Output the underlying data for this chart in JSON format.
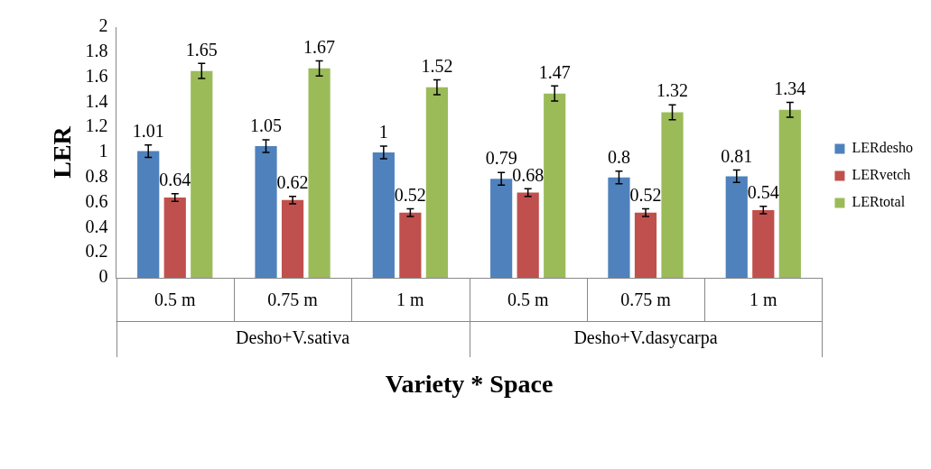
{
  "chart_data": {
    "type": "bar",
    "xlabel": "Variety * Space",
    "ylabel": "LER",
    "categories": [
      "0.5 m",
      "0.75 m",
      "1 m",
      "0.5 m",
      "0.75 m",
      "1 m"
    ],
    "annotations": [
      "Desho+V.sativa",
      "Desho+V.dasycarpa"
    ],
    "series": [
      {
        "name": "LERdesho",
        "color": "#4f81bd",
        "values": [
          1.01,
          1.05,
          1,
          0.79,
          0.8,
          0.81
        ],
        "errors": [
          0.05,
          0.05,
          0.05,
          0.05,
          0.05,
          0.05
        ]
      },
      {
        "name": "LERvetch",
        "color": "#c0504d",
        "values": [
          0.64,
          0.62,
          0.52,
          0.68,
          0.52,
          0.54
        ],
        "errors": [
          0.03,
          0.03,
          0.03,
          0.03,
          0.03,
          0.03
        ]
      },
      {
        "name": "LERtotal",
        "color": "#9bbb59",
        "values": [
          1.65,
          1.67,
          1.52,
          1.47,
          1.32,
          1.34
        ],
        "errors": [
          0.06,
          0.06,
          0.06,
          0.06,
          0.06,
          0.06
        ]
      }
    ],
    "ylim": [
      0,
      2
    ],
    "yticks": [
      0,
      0.2,
      0.4,
      0.6,
      0.8,
      1,
      1.2,
      1.4,
      1.6,
      1.8,
      2
    ],
    "grid": false,
    "legend": "right",
    "data_labels": true
  }
}
